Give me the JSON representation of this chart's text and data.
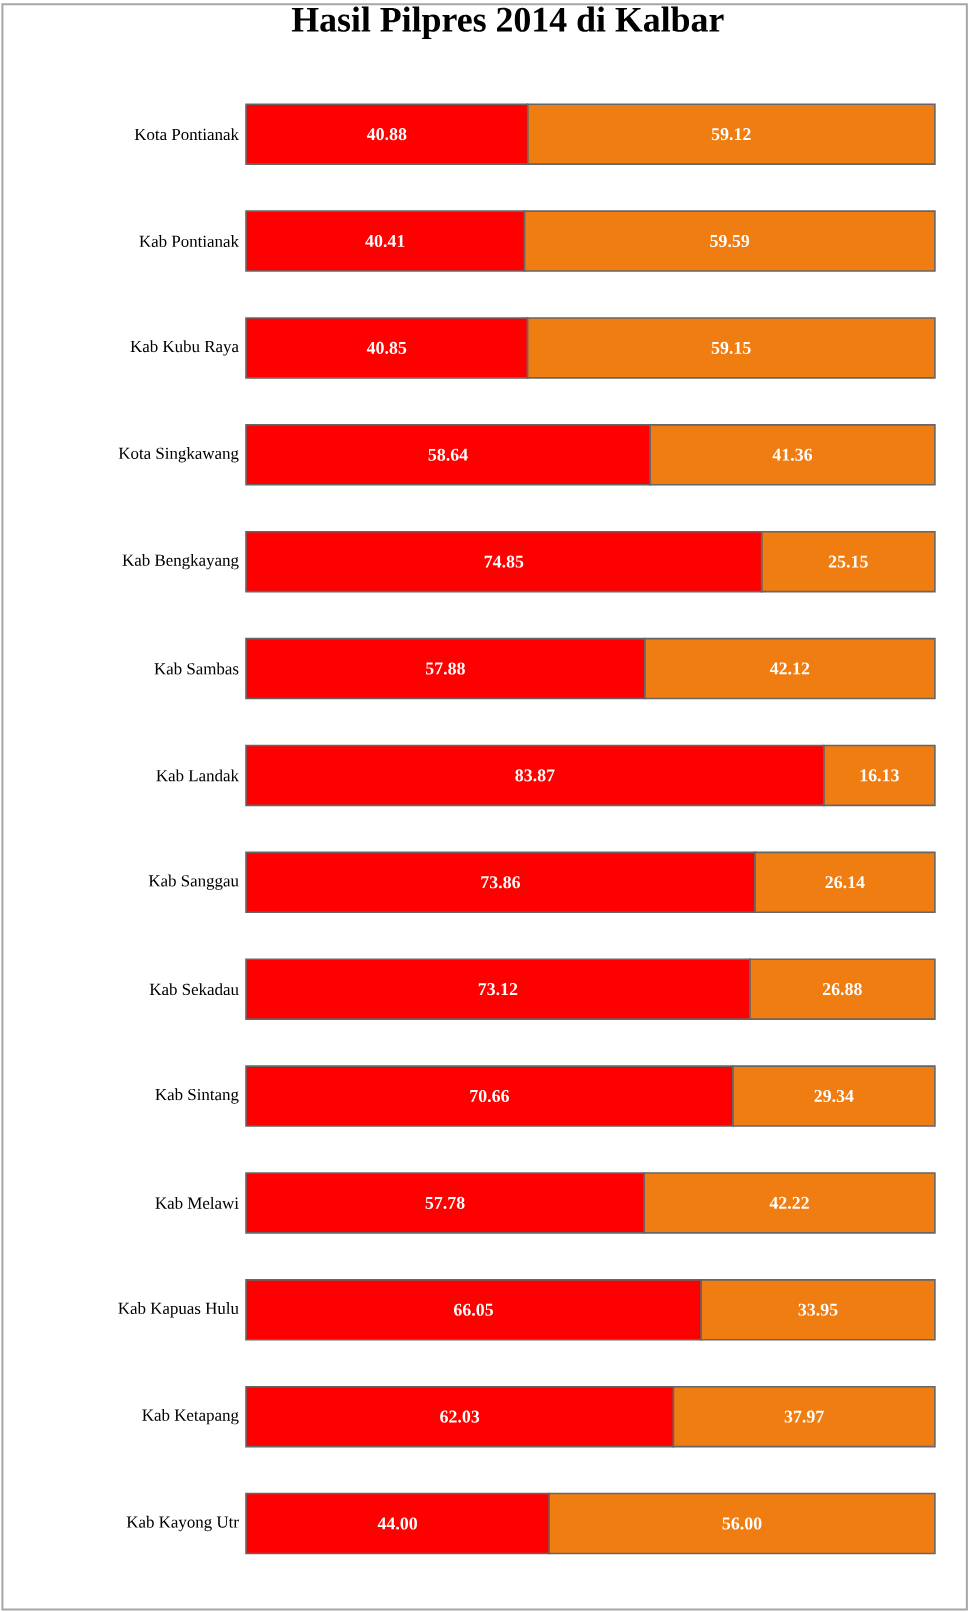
{
  "chart_data": {
    "type": "bar",
    "orientation": "horizontal",
    "stacked": true,
    "title": "Hasil Pilpres 2014 di Kalbar",
    "categories": [
      "Kota Pontianak",
      "Kab Pontianak",
      "Kab Kubu Raya",
      "Kota Singkawang",
      "Kab Bengkayang",
      "Kab Sambas",
      "Kab Landak",
      "Kab Sanggau",
      "Kab Sekadau",
      "Kab Sintang",
      "Kab Melawi",
      "Kab Kapuas  Hulu",
      "Kab Ketapang",
      "Kab Kayong Utr"
    ],
    "series": [
      {
        "color": "#ff0000",
        "values": [
          40.88,
          40.41,
          40.85,
          58.64,
          74.85,
          57.88,
          83.87,
          73.86,
          73.12,
          70.66,
          57.78,
          66.05,
          62.03,
          44.0
        ],
        "value_labels": [
          "40.88",
          "40.41",
          "40.85",
          "58.64",
          "74.85",
          "57.88",
          "83.87",
          "73.86",
          "73.12",
          "70.66",
          "57.78",
          "66.05",
          "62.03",
          "44.00"
        ]
      },
      {
        "color": "#f07d12",
        "values": [
          59.12,
          59.59,
          59.15,
          41.36,
          25.15,
          42.12,
          16.13,
          26.14,
          26.88,
          29.34,
          42.22,
          33.95,
          37.97,
          56.0
        ],
        "value_labels": [
          "59.12",
          "59.59",
          "59.15",
          "41.36",
          "25.15",
          "42.12",
          "16.13",
          "26.14",
          "26.88",
          "29.34",
          "42.22",
          "33.95",
          "37.97",
          "56.00"
        ]
      }
    ]
  }
}
